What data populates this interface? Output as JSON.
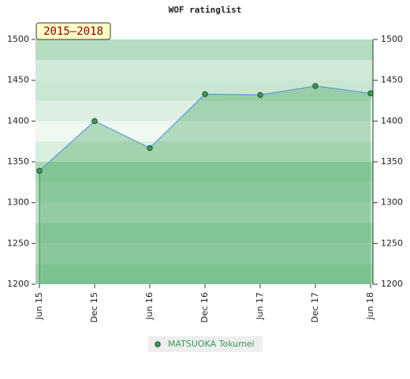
{
  "chart_data": {
    "type": "line",
    "title": "WOF ratinglist",
    "period": "2015–2018",
    "categories": [
      "Jun 15",
      "Dec 15",
      "Jun 16",
      "Dec 16",
      "Jun 17",
      "Dec 17",
      "Jun 18"
    ],
    "series": [
      {
        "name": "MATSUOKA Tokumei",
        "color": "#3a9a5a",
        "values": [
          1339,
          1400,
          1367,
          1433,
          1432,
          1443,
          1434
        ]
      }
    ],
    "ylim": [
      1200,
      1500
    ],
    "yticks": [
      1200,
      1250,
      1300,
      1350,
      1400,
      1450,
      1500
    ],
    "y2lim": [
      1200,
      1500
    ],
    "y2ticks": [
      1200,
      1250,
      1300,
      1350,
      1400,
      1450,
      1500
    ]
  }
}
